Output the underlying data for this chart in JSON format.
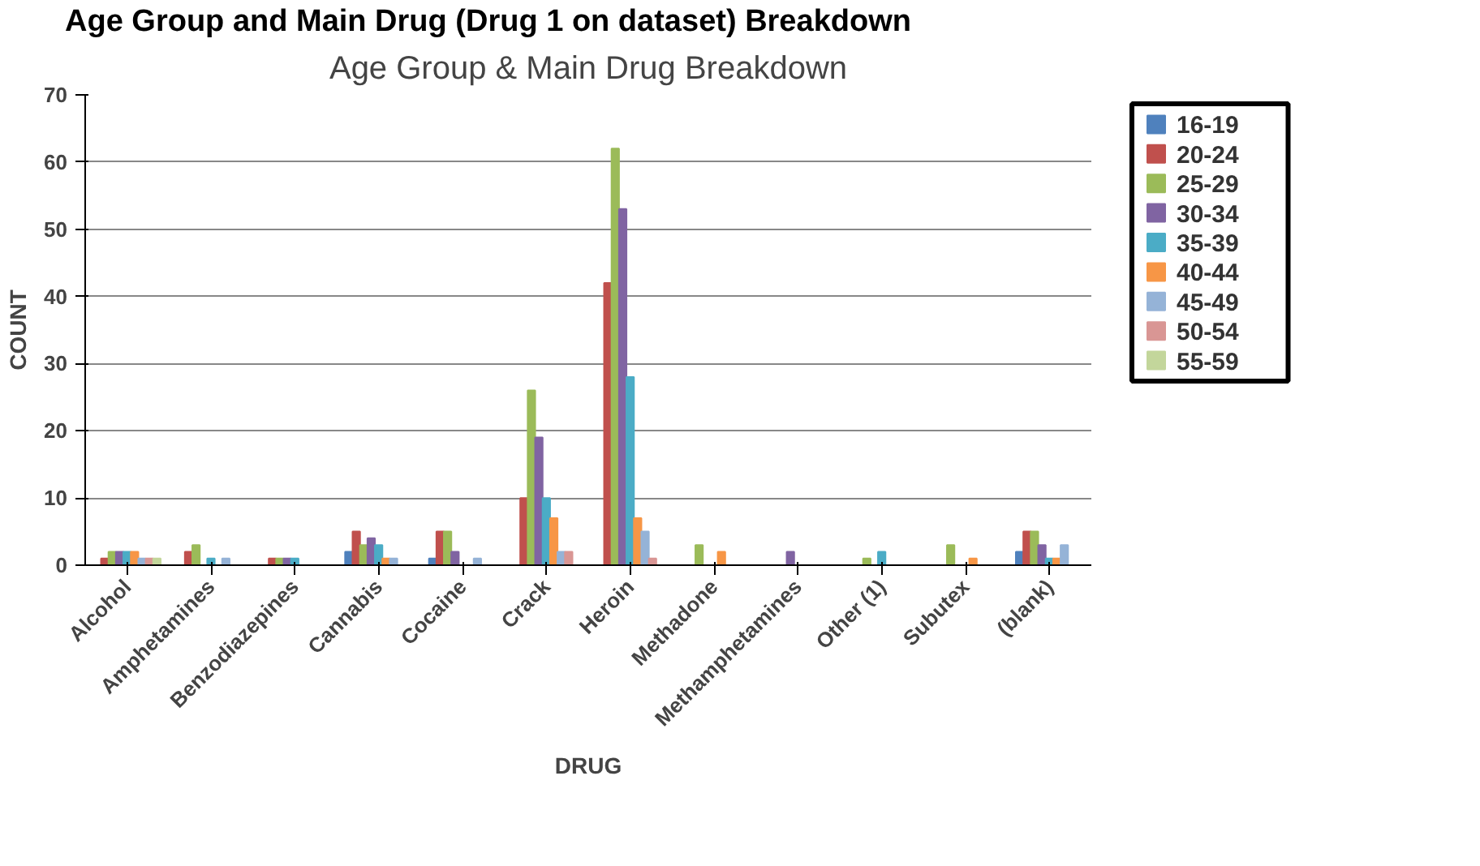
{
  "chart_data": {
    "type": "bar",
    "title": "Age Group & Main Drug Breakdown",
    "annotations": [
      "Age Group and Main Drug (Drug 1 on dataset) Breakdown"
    ],
    "xlabel": "DRUG",
    "ylabel": "COUNT",
    "categories": [
      "Alcohol",
      "Amphetamines",
      "Benzodiazepines",
      "Cannabis",
      "Cocaine",
      "Crack",
      "Heroin",
      "Methadone",
      "Methamphetamines",
      "Other (1)",
      "Subutex",
      "(blank)"
    ],
    "series": [
      {
        "name": "16-19",
        "color": "#4f81bd",
        "values": [
          0,
          0,
          0,
          2,
          1,
          0,
          0,
          0,
          0,
          0,
          0,
          2
        ]
      },
      {
        "name": "20-24",
        "color": "#c0504d",
        "values": [
          1,
          2,
          1,
          5,
          5,
          10,
          42,
          0,
          0,
          0,
          0,
          5
        ]
      },
      {
        "name": "25-29",
        "color": "#9bbb59",
        "values": [
          2,
          3,
          1,
          3,
          5,
          26,
          62,
          3,
          0,
          1,
          3,
          5
        ]
      },
      {
        "name": "30-34",
        "color": "#8064a2",
        "values": [
          2,
          0,
          1,
          4,
          2,
          19,
          53,
          0,
          2,
          0,
          0,
          3
        ]
      },
      {
        "name": "35-39",
        "color": "#4bacc6",
        "values": [
          2,
          1,
          1,
          3,
          0,
          10,
          28,
          0,
          0,
          2,
          0,
          1
        ]
      },
      {
        "name": "40-44",
        "color": "#f79646",
        "values": [
          2,
          0,
          0,
          1,
          0,
          7,
          7,
          2,
          0,
          0,
          1,
          1
        ]
      },
      {
        "name": "45-49",
        "color": "#95b3d7",
        "values": [
          1,
          1,
          0,
          1,
          1,
          2,
          5,
          0,
          0,
          0,
          0,
          3
        ]
      },
      {
        "name": "50-54",
        "color": "#d99694",
        "values": [
          1,
          0,
          0,
          0,
          0,
          2,
          1,
          0,
          0,
          0,
          0,
          0
        ]
      },
      {
        "name": "55-59",
        "color": "#c3d69b",
        "values": [
          1,
          0,
          0,
          0,
          0,
          0,
          0,
          0,
          0,
          0,
          0,
          0
        ]
      }
    ],
    "ylim": [
      0,
      70
    ],
    "yticks": [
      0,
      10,
      20,
      30,
      40,
      50,
      60,
      70
    ],
    "grid": "y",
    "legend": "right"
  }
}
